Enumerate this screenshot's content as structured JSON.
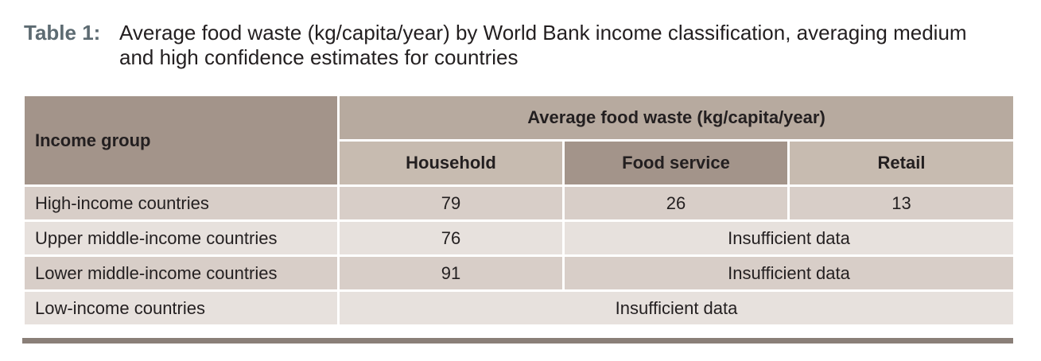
{
  "caption": {
    "label": "Table 1:",
    "text": "Average food waste (kg/capita/year) by World Bank income classification, averaging medium and high confidence estimates for countries"
  },
  "table": {
    "row_header": "Income group",
    "group_header": "Average food waste (kg/capita/year)",
    "columns": [
      "Household",
      "Food service",
      "Retail"
    ],
    "rows": [
      {
        "label": "High-income countries",
        "household": "79",
        "food_service": "26",
        "retail": "13"
      },
      {
        "label": "Upper middle-income countries",
        "household": "76",
        "merged": "Insufficient data"
      },
      {
        "label": "Lower middle-income countries",
        "household": "91",
        "merged": "Insufficient data"
      },
      {
        "label": "Low-income countries",
        "merged": "Insufficient data"
      }
    ]
  },
  "colors": {
    "header_dark": "#a3948a",
    "header_mid": "#b7aa9f",
    "header_light": "#c7bbb0",
    "row_shaded": "#d8cec8",
    "row_light": "#e7e1dd",
    "caption_label": "#5d6b72",
    "bottom_rule": "#8a7f78"
  }
}
